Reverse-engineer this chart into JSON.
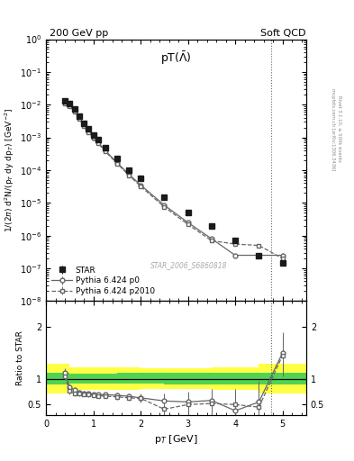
{
  "title_left": "200 GeV pp",
  "title_right": "Soft QCD",
  "plot_title": "pT($\\bar{\\Lambda}$)",
  "ylabel_main": "1/(2$\\pi$) d$^2$N/(p$_T$ dy dp$_T$) [GeV$^{-2}$]",
  "ylabel_ratio": "Ratio to STAR",
  "xlabel": "p$_T$ [GeV]",
  "watermark": "STAR_2006_S6860818",
  "right_label1": "Rivet 3.1.10, ≥ 500k events",
  "right_label2": "mcplots.cern.ch [arXiv:1306.3436]",
  "star_pt": [
    0.4,
    0.5,
    0.6,
    0.7,
    0.8,
    0.9,
    1.0,
    1.1,
    1.25,
    1.5,
    1.75,
    2.0,
    2.5,
    3.0,
    3.5,
    4.0,
    4.5,
    5.0
  ],
  "star_y": [
    0.013,
    0.011,
    0.0075,
    0.0045,
    0.0026,
    0.0018,
    0.0012,
    0.00085,
    0.0005,
    0.00022,
    0.0001,
    5.5e-05,
    1.5e-05,
    5e-06,
    2e-06,
    7e-07,
    2.5e-07,
    1.5e-07
  ],
  "star_yerr": [
    0.0005,
    0.0004,
    0.0003,
    0.0002,
    0.0001,
    7e-05,
    5e-05,
    3e-05,
    2e-05,
    8e-06,
    4e-06,
    2e-06,
    6e-07,
    2.5e-07,
    1.2e-07,
    5e-08,
    2e-08,
    1.5e-08
  ],
  "p0_pt": [
    0.4,
    0.5,
    0.6,
    0.7,
    0.8,
    0.9,
    1.0,
    1.1,
    1.25,
    1.5,
    1.75,
    2.0,
    2.5,
    3.0,
    3.5,
    4.0,
    4.5,
    5.0
  ],
  "p0_y": [
    0.012,
    0.0095,
    0.0065,
    0.004,
    0.0024,
    0.0015,
    0.001,
    0.0007,
    0.0004,
    0.00017,
    7.5e-05,
    3.5e-05,
    8.5e-06,
    2.5e-06,
    8e-07,
    2.5e-07,
    2.5e-07,
    2.5e-07
  ],
  "p0_yerr": [
    0.0003,
    0.0002,
    0.00015,
    9e-05,
    5e-05,
    3e-05,
    2e-05,
    1.4e-05,
    8e-06,
    3.5e-06,
    1.5e-06,
    8e-07,
    2e-07,
    8e-08,
    4e-08,
    2e-08,
    3e-08,
    5e-08
  ],
  "p2010_pt": [
    0.4,
    0.5,
    0.6,
    0.7,
    0.8,
    0.9,
    1.0,
    1.1,
    1.25,
    1.5,
    1.75,
    2.0,
    2.5,
    3.0,
    3.5,
    4.0,
    4.5,
    5.0
  ],
  "p2010_y": [
    0.011,
    0.009,
    0.0062,
    0.0038,
    0.0022,
    0.0014,
    0.00095,
    0.00065,
    0.00038,
    0.00016,
    7e-05,
    3.2e-05,
    7.5e-06,
    2.2e-06,
    7e-07,
    5.5e-07,
    5e-07,
    2e-07
  ],
  "p2010_yerr": [
    0.0003,
    0.0002,
    0.00015,
    9e-05,
    5e-05,
    3e-05,
    2e-05,
    1.4e-05,
    8e-06,
    3.5e-06,
    1.5e-06,
    8e-07,
    2e-07,
    8e-08,
    4e-08,
    3e-08,
    5e-08,
    5e-08
  ],
  "ratio_p0_pt": [
    0.4,
    0.5,
    0.6,
    0.7,
    0.8,
    0.9,
    1.0,
    1.1,
    1.25,
    1.5,
    1.75,
    2.0,
    2.5,
    3.0,
    3.5,
    4.0,
    4.5,
    5.0
  ],
  "ratio_p0_y": [
    1.12,
    0.83,
    0.78,
    0.74,
    0.72,
    0.71,
    0.7,
    0.69,
    0.69,
    0.68,
    0.66,
    0.63,
    0.57,
    0.55,
    0.58,
    0.38,
    0.55,
    1.5
  ],
  "ratio_p0_yerr": [
    0.08,
    0.06,
    0.05,
    0.05,
    0.04,
    0.04,
    0.04,
    0.04,
    0.04,
    0.05,
    0.06,
    0.08,
    0.15,
    0.2,
    0.22,
    0.3,
    0.4,
    0.4
  ],
  "ratio_p2010_pt": [
    0.4,
    0.5,
    0.6,
    0.7,
    0.8,
    0.9,
    1.0,
    1.1,
    1.25,
    1.5,
    1.75,
    2.0,
    2.5,
    3.0,
    3.5,
    4.0,
    4.5,
    5.0
  ],
  "ratio_p2010_y": [
    1.05,
    0.76,
    0.72,
    0.71,
    0.7,
    0.69,
    0.68,
    0.67,
    0.66,
    0.65,
    0.63,
    0.62,
    0.41,
    0.5,
    0.52,
    0.5,
    0.45,
    1.45
  ],
  "ratio_p2010_yerr": [
    0.08,
    0.06,
    0.05,
    0.05,
    0.04,
    0.04,
    0.04,
    0.04,
    0.04,
    0.05,
    0.06,
    0.08,
    0.15,
    0.2,
    0.22,
    0.3,
    0.4,
    0.4
  ],
  "band_x_edges": [
    0.0,
    0.5,
    1.0,
    1.5,
    2.0,
    2.5,
    3.0,
    3.5,
    4.0,
    4.5,
    5.5
  ],
  "band_green_lo": [
    0.88,
    0.9,
    0.9,
    0.9,
    0.9,
    0.88,
    0.88,
    0.88,
    0.88,
    0.88,
    0.88
  ],
  "band_green_hi": [
    1.12,
    1.1,
    1.1,
    1.12,
    1.12,
    1.12,
    1.12,
    1.12,
    1.12,
    1.12,
    1.12
  ],
  "band_yellow_lo": [
    0.72,
    0.78,
    0.78,
    0.78,
    0.8,
    0.8,
    0.8,
    0.78,
    0.78,
    0.72,
    0.72
  ],
  "band_yellow_hi": [
    1.28,
    1.22,
    1.22,
    1.22,
    1.2,
    1.2,
    1.2,
    1.22,
    1.22,
    1.28,
    1.28
  ],
  "vline_x": 4.75,
  "ylim_main": [
    1e-08,
    1.0
  ],
  "ylim_ratio": [
    0.3,
    2.5
  ],
  "xlim": [
    0.0,
    5.5
  ],
  "ratio_yticks": [
    0.5,
    1.0,
    2.0
  ],
  "color_star": "#1a1a1a",
  "color_p0": "#666666",
  "color_p2010": "#666666",
  "color_green": "#33cc55",
  "color_yellow": "#ffff44",
  "color_watermark": "#aaaaaa",
  "color_side_text": "#888888"
}
